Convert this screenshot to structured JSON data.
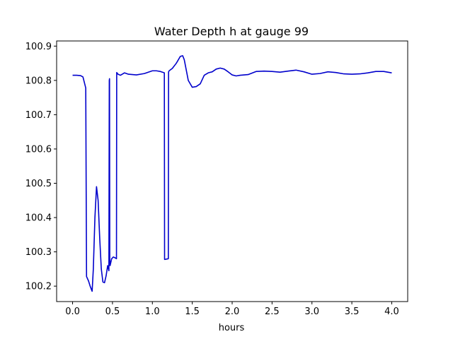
{
  "chart_data": {
    "type": "line",
    "title": "Water Depth h at gauge 99",
    "xlabel": "hours",
    "ylabel": "",
    "xlim": [
      -0.2,
      4.2
    ],
    "ylim": [
      100.155,
      100.915
    ],
    "xticks": [
      0.0,
      0.5,
      1.0,
      1.5,
      2.0,
      2.5,
      3.0,
      3.5,
      4.0
    ],
    "xtick_labels": [
      "0.0",
      "0.5",
      "1.0",
      "1.5",
      "2.0",
      "2.5",
      "3.0",
      "3.5",
      "4.0"
    ],
    "yticks": [
      100.2,
      100.3,
      100.4,
      100.5,
      100.6,
      100.7,
      100.8,
      100.9
    ],
    "ytick_labels": [
      "100.2",
      "100.3",
      "100.4",
      "100.5",
      "100.6",
      "100.7",
      "100.8",
      "100.9"
    ],
    "grid": false,
    "series": [
      {
        "color": "#0000cc",
        "x": [
          0.0,
          0.05,
          0.1,
          0.13,
          0.165,
          0.17,
          0.175,
          0.2,
          0.22,
          0.245,
          0.26,
          0.28,
          0.3,
          0.32,
          0.34,
          0.36,
          0.38,
          0.4,
          0.42,
          0.44,
          0.455,
          0.46,
          0.463,
          0.466,
          0.47,
          0.49,
          0.51,
          0.53,
          0.55,
          0.553,
          0.556,
          0.57,
          0.6,
          0.65,
          0.7,
          0.8,
          0.9,
          1.0,
          1.05,
          1.1,
          1.15,
          1.153,
          1.16,
          1.2,
          1.203,
          1.21,
          1.25,
          1.3,
          1.35,
          1.38,
          1.4,
          1.45,
          1.5,
          1.55,
          1.6,
          1.65,
          1.7,
          1.75,
          1.8,
          1.85,
          1.9,
          1.95,
          2.0,
          2.05,
          2.1,
          2.2,
          2.3,
          2.4,
          2.5,
          2.6,
          2.7,
          2.8,
          2.9,
          3.0,
          3.1,
          3.2,
          3.3,
          3.4,
          3.5,
          3.6,
          3.7,
          3.8,
          3.9,
          4.0
        ],
        "y": [
          100.815,
          100.815,
          100.814,
          100.81,
          100.778,
          100.5,
          100.228,
          100.215,
          100.2,
          100.185,
          100.25,
          100.4,
          100.49,
          100.45,
          100.34,
          100.25,
          100.212,
          100.21,
          100.23,
          100.26,
          100.245,
          100.8,
          100.805,
          100.28,
          100.26,
          100.28,
          100.285,
          100.283,
          100.28,
          100.823,
          100.822,
          100.818,
          100.815,
          100.822,
          100.818,
          100.816,
          100.82,
          100.828,
          100.828,
          100.826,
          100.822,
          100.278,
          100.278,
          100.28,
          100.825,
          100.828,
          100.835,
          100.85,
          100.87,
          100.872,
          100.86,
          100.8,
          100.78,
          100.782,
          100.79,
          100.815,
          100.822,
          100.825,
          100.833,
          100.836,
          100.833,
          100.825,
          100.816,
          100.813,
          100.815,
          100.817,
          100.826,
          100.827,
          100.826,
          100.824,
          100.827,
          100.83,
          100.825,
          100.818,
          100.82,
          100.825,
          100.823,
          100.819,
          100.818,
          100.819,
          100.822,
          100.826,
          100.826,
          100.822
        ]
      }
    ]
  }
}
